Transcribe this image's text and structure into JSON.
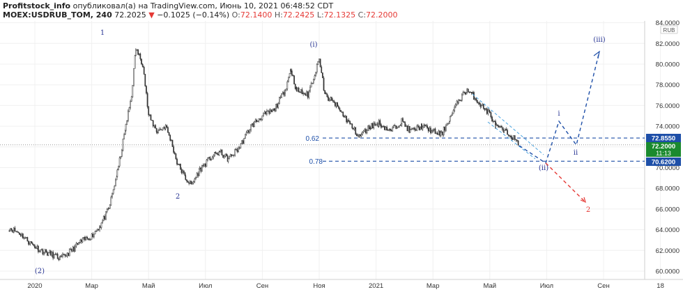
{
  "header": {
    "publisher": "Profitstock_info",
    "published_text": "опубликовал(а) на TradingView.com, Июнь 10, 2021 06:48:52 CDT",
    "symbol": "MOEX:USDRUB_TOM, 240",
    "last": "72.2025",
    "change_arrow": "▼",
    "change": "−0.1025 (−0.14%)",
    "o_label": "O:",
    "o": "72.1400",
    "h_label": "H:",
    "h": "72.2425",
    "l_label": "L:",
    "l": "72.1325",
    "c_label": "C:",
    "c": "72.2000"
  },
  "currency_label": "RUB",
  "price_tags": {
    "tag_high": "72.8550",
    "tag_last": "72.2000",
    "tag_timer": "11:13",
    "tag_low": "70.6200"
  },
  "fib_labels": {
    "f062": "0.62",
    "f078": "0.78"
  },
  "wave_labels": {
    "w2a": "(2)",
    "w1": "1",
    "w2": "2",
    "wi": "(i)",
    "wii": "(ii)",
    "wiii": "(iii)",
    "wi_small": "i",
    "wii_small": "ii",
    "w2_red": "2"
  },
  "colors": {
    "candle": "#333333",
    "blue_dash": "#1e4fa8",
    "red_dash": "#e53935",
    "tag_blue": "#1e4fa8",
    "tag_green": "#1b8a2e",
    "wave_blue": "#283593",
    "wave_red": "#e53935"
  },
  "chart_data": {
    "type": "line",
    "title": "",
    "xlabel": "",
    "ylabel": "",
    "y_ticks": [
      "84.0000",
      "82.0000",
      "80.0000",
      "78.0000",
      "76.0000",
      "74.0000",
      "72.0000",
      "70.0000",
      "68.0000",
      "66.0000",
      "64.0000",
      "62.0000",
      "60.0000"
    ],
    "ylim": [
      59.3,
      84.4
    ],
    "x_ticks": [
      "2020",
      "Мар",
      "Май",
      "Июл",
      "Сен",
      "Ноя",
      "2021",
      "Мар",
      "Май",
      "Июл",
      "Сен",
      "18"
    ],
    "x_tick_months": [
      0,
      2,
      4,
      6,
      8,
      10,
      12,
      14,
      16,
      18,
      20,
      22
    ],
    "x_axis_unit": "months since Jan 2020",
    "series": [
      {
        "style": "candlestick-approx",
        "points": [
          [
            -0.9,
            64.2
          ],
          [
            -0.5,
            63.6
          ],
          [
            -0.2,
            62.8
          ],
          [
            0.2,
            62.0
          ],
          [
            0.6,
            61.6
          ],
          [
            0.9,
            61.2
          ],
          [
            1.3,
            62.0
          ],
          [
            1.6,
            62.8
          ],
          [
            2.0,
            63.4
          ],
          [
            2.3,
            64.4
          ],
          [
            2.6,
            66.0
          ],
          [
            2.9,
            69.5
          ],
          [
            3.2,
            74.0
          ],
          [
            3.4,
            77.0
          ],
          [
            3.55,
            81.5
          ],
          [
            3.8,
            80.0
          ],
          [
            4.0,
            75.0
          ],
          [
            4.3,
            73.5
          ],
          [
            4.6,
            74.0
          ],
          [
            4.8,
            72.5
          ],
          [
            5.0,
            70.5
          ],
          [
            5.3,
            69.0
          ],
          [
            5.5,
            68.3
          ],
          [
            5.8,
            69.8
          ],
          [
            6.2,
            71.0
          ],
          [
            6.5,
            71.5
          ],
          [
            6.8,
            70.8
          ],
          [
            7.2,
            72.0
          ],
          [
            7.6,
            74.0
          ],
          [
            8.0,
            75.0
          ],
          [
            8.4,
            75.5
          ],
          [
            8.8,
            77.5
          ],
          [
            9.0,
            79.5
          ],
          [
            9.2,
            77.5
          ],
          [
            9.6,
            77.0
          ],
          [
            10.0,
            80.5
          ],
          [
            10.2,
            77.0
          ],
          [
            10.6,
            76.0
          ],
          [
            11.0,
            74.5
          ],
          [
            11.4,
            73.0
          ],
          [
            11.8,
            74.0
          ],
          [
            12.1,
            74.3
          ],
          [
            12.5,
            73.5
          ],
          [
            12.9,
            74.5
          ],
          [
            13.2,
            73.5
          ],
          [
            13.6,
            74.0
          ],
          [
            14.0,
            73.5
          ],
          [
            14.3,
            73.2
          ],
          [
            14.6,
            74.8
          ],
          [
            14.9,
            76.5
          ],
          [
            15.2,
            77.5
          ],
          [
            15.4,
            77.0
          ],
          [
            15.7,
            76.0
          ],
          [
            16.0,
            75.2
          ],
          [
            16.2,
            74.0
          ],
          [
            16.5,
            73.5
          ],
          [
            16.8,
            73.0
          ],
          [
            17.0,
            72.2
          ]
        ]
      }
    ],
    "levels": [
      {
        "label": "0.62",
        "value": 72.855
      },
      {
        "label": "0.78",
        "value": 70.62
      },
      {
        "value": 72.2
      }
    ]
  }
}
